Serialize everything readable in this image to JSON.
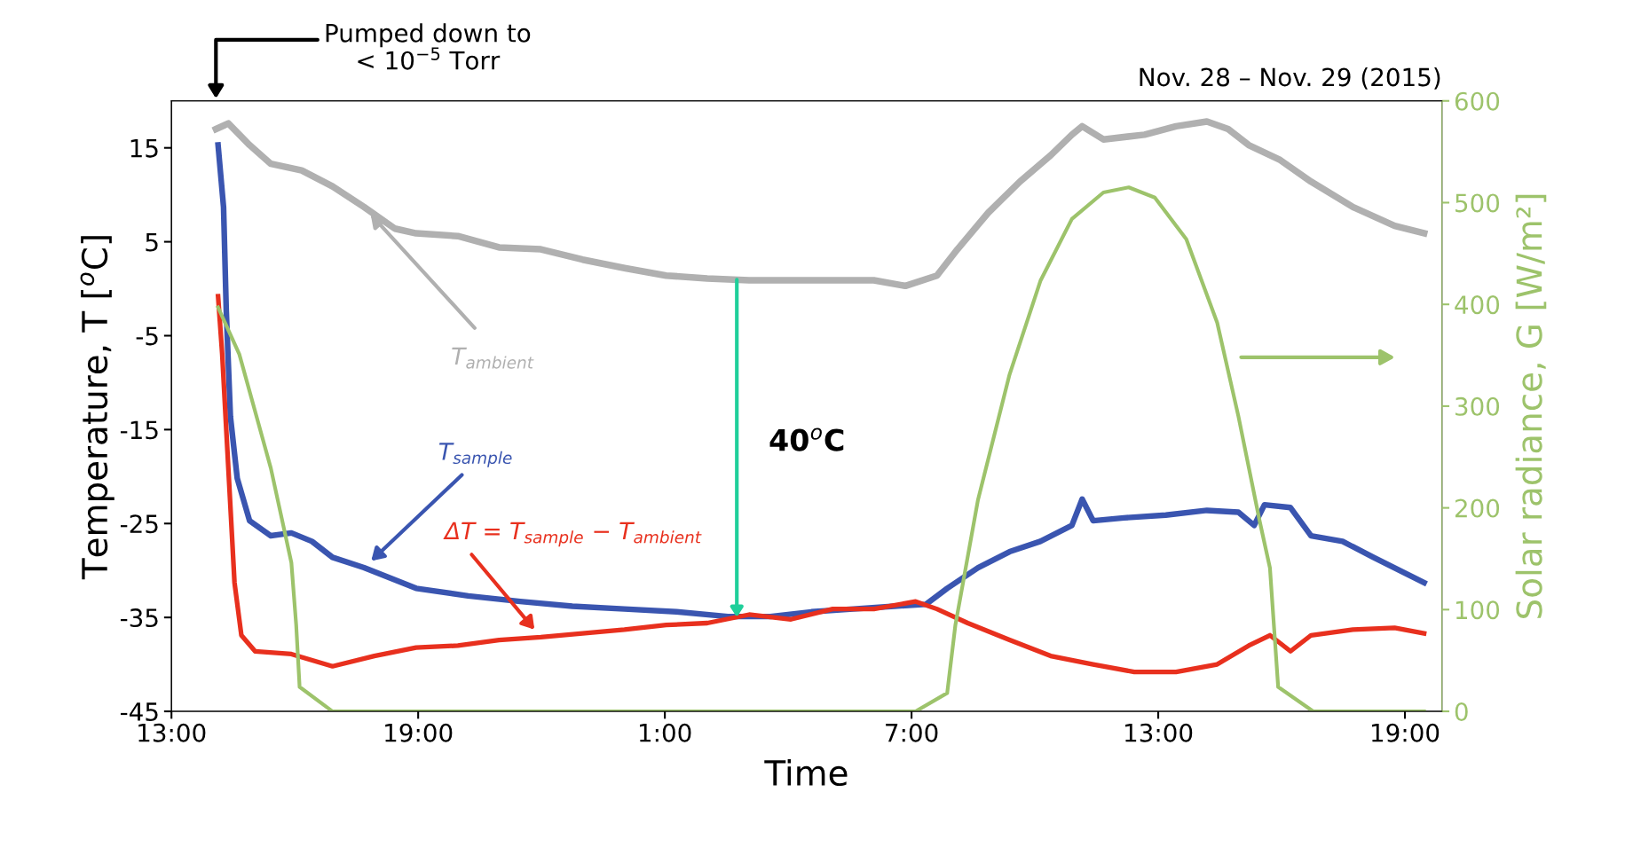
{
  "chart_data": {
    "type": "line",
    "title": "Nov. 28 – Nov. 29 (2015)",
    "xlabel": "Time",
    "ylabel": "Temperature, T [$^{o}$C]",
    "y2label": "Solar radiance, G [W/m²]",
    "xlim": [
      "2015-11-28T13:00",
      "2015-11-29T19:54"
    ],
    "xticks": [
      {
        "value": "2015-11-28T13:00",
        "label": "13:00"
      },
      {
        "value": "2015-11-28T19:00",
        "label": "19:00"
      },
      {
        "value": "2015-11-29T01:00",
        "label": "1:00"
      },
      {
        "value": "2015-11-29T07:00",
        "label": "7:00"
      },
      {
        "value": "2015-11-29T13:00",
        "label": "13:00"
      },
      {
        "value": "2015-11-29T19:00",
        "label": "19:00"
      }
    ],
    "ylim": [
      -45,
      20
    ],
    "yticks": [
      -45,
      -35,
      -25,
      -15,
      -5,
      5,
      15
    ],
    "y2lim": [
      0,
      600
    ],
    "y2ticks": [
      0,
      100,
      200,
      300,
      400,
      500,
      600
    ],
    "grid": false,
    "legend": false,
    "marker": "none",
    "line_style": "solid",
    "series": [
      {
        "name": "T$_{ambient}$",
        "color": "#b0b0b0",
        "x": [
          "2015-11-28T14:05",
          "2015-11-28T14:23",
          "2015-11-28T14:54",
          "2015-11-28T15:25",
          "2015-11-28T16:10",
          "2015-11-28T16:55",
          "2015-11-28T17:41",
          "2015-11-28T18:26",
          "2015-11-28T18:57",
          "2015-11-28T19:58",
          "2015-11-28T20:58",
          "2015-11-28T21:59",
          "2015-11-28T23:00",
          "2015-11-29T00:01",
          "2015-11-29T01:02",
          "2015-11-29T02:02",
          "2015-11-29T03:03",
          "2015-11-29T04:04",
          "2015-11-29T05:05",
          "2015-11-29T06:05",
          "2015-11-29T06:51",
          "2015-11-29T07:37",
          "2015-11-29T08:07",
          "2015-11-29T08:52",
          "2015-11-29T09:38",
          "2015-11-29T10:23",
          "2015-11-29T10:54",
          "2015-11-29T11:09",
          "2015-11-29T11:40",
          "2015-11-29T12:40",
          "2015-11-29T13:26",
          "2015-11-29T14:11",
          "2015-11-29T14:42",
          "2015-11-29T15:12",
          "2015-11-29T15:58",
          "2015-11-29T16:43",
          "2015-11-29T17:44",
          "2015-11-29T18:45",
          "2015-11-29T19:28"
        ],
        "values": [
          17,
          17.6,
          15.3,
          13.3,
          12.6,
          10.9,
          8.7,
          6.4,
          5.9,
          5.6,
          4.4,
          4.2,
          3.1,
          2.2,
          1.4,
          1.1,
          0.9,
          0.9,
          0.9,
          0.9,
          0.3,
          1.4,
          4.2,
          8.1,
          11.4,
          14.2,
          16.4,
          17.3,
          15.9,
          16.4,
          17.3,
          17.8,
          17,
          15.3,
          13.7,
          11.4,
          8.7,
          6.7,
          5.9
        ]
      },
      {
        "name": "T$_{sample}$",
        "color": "#3a55b0",
        "x": [
          "2015-11-28T14:08",
          "2015-11-28T14:16",
          "2015-11-28T14:20",
          "2015-11-28T14:26",
          "2015-11-28T14:36",
          "2015-11-28T14:54",
          "2015-11-28T15:25",
          "2015-11-28T15:55",
          "2015-11-28T16:25",
          "2015-11-28T16:55",
          "2015-11-28T17:41",
          "2015-11-28T18:57",
          "2015-11-28T20:13",
          "2015-11-28T21:29",
          "2015-11-28T22:45",
          "2015-11-29T00:01",
          "2015-11-29T01:17",
          "2015-11-29T02:32",
          "2015-11-29T03:34",
          "2015-11-29T04:34",
          "2015-11-29T05:35",
          "2015-11-29T06:35",
          "2015-11-29T07:21",
          "2015-11-29T07:52",
          "2015-11-29T08:37",
          "2015-11-29T09:23",
          "2015-11-29T10:08",
          "2015-11-29T10:54",
          "2015-11-29T11:09",
          "2015-11-29T11:25",
          "2015-11-29T12:10",
          "2015-11-29T13:11",
          "2015-11-29T14:11",
          "2015-11-29T14:57",
          "2015-11-29T15:20",
          "2015-11-29T15:35",
          "2015-11-29T16:13",
          "2015-11-29T16:43",
          "2015-11-29T17:29",
          "2015-11-29T18:14",
          "2015-11-29T19:28"
        ],
        "values": [
          15.3,
          8.7,
          -2.4,
          -13.6,
          -20.2,
          -24.7,
          -26.3,
          -26,
          -26.9,
          -28.6,
          -29.7,
          -31.9,
          -32.7,
          -33.3,
          -33.8,
          -34.1,
          -34.4,
          -34.9,
          -34.9,
          -34.4,
          -34.1,
          -33.8,
          -33.6,
          -31.9,
          -29.7,
          -28,
          -26.9,
          -25.2,
          -22.4,
          -24.7,
          -24.4,
          -24.1,
          -23.6,
          -23.8,
          -25.2,
          -23,
          -23.3,
          -26.3,
          -26.9,
          -28.6,
          -31.3
        ]
      },
      {
        "name": "ΔT = T$_{sample}$ − T$_{ambient}$",
        "color": "#e8301e",
        "x": [
          "2015-11-28T14:08",
          "2015-11-28T14:14",
          "2015-11-28T14:23",
          "2015-11-28T14:32",
          "2015-11-28T14:42",
          "2015-11-28T15:02",
          "2015-11-28T15:55",
          "2015-11-28T16:55",
          "2015-11-28T17:56",
          "2015-11-28T18:57",
          "2015-11-28T19:58",
          "2015-11-28T20:58",
          "2015-11-28T21:59",
          "2015-11-28T23:00",
          "2015-11-29T00:01",
          "2015-11-29T01:02",
          "2015-11-29T02:02",
          "2015-11-29T03:03",
          "2015-11-29T04:04",
          "2015-11-29T05:05",
          "2015-11-29T06:05",
          "2015-11-29T07:06",
          "2015-11-29T07:37",
          "2015-11-29T08:22",
          "2015-11-29T09:23",
          "2015-11-29T10:23",
          "2015-11-29T11:25",
          "2015-11-29T12:25",
          "2015-11-29T13:26",
          "2015-11-29T14:26",
          "2015-11-29T15:12",
          "2015-11-29T15:43",
          "2015-11-29T16:13",
          "2015-11-29T16:43",
          "2015-11-29T17:44",
          "2015-11-29T18:45",
          "2015-11-29T19:28"
        ],
        "values": [
          -0.8,
          -6.9,
          -19.1,
          -31.3,
          -36.9,
          -38.6,
          -38.9,
          -40.2,
          -39.1,
          -38.2,
          -38,
          -37.4,
          -37.1,
          -36.7,
          -36.3,
          -35.8,
          -35.6,
          -34.7,
          -35.2,
          -34.1,
          -34.1,
          -33.3,
          -34.1,
          -35.6,
          -37.4,
          -39.1,
          -40,
          -40.8,
          -40.8,
          -40,
          -38,
          -36.9,
          -38.6,
          -36.9,
          -36.3,
          -36.1,
          -36.7
        ]
      },
      {
        "color": "#9dc36b",
        "axis": "y2",
        "x": [
          "2015-11-28T14:08",
          "2015-11-28T14:39",
          "2015-11-28T15:25",
          "2015-11-28T15:55",
          "2015-11-28T16:02",
          "2015-11-28T16:07",
          "2015-11-28T16:55",
          "2015-11-29T07:06",
          "2015-11-29T07:52",
          "2015-11-29T08:04",
          "2015-11-29T08:37",
          "2015-11-29T09:23",
          "2015-11-29T10:08",
          "2015-11-29T10:54",
          "2015-11-29T11:40",
          "2015-11-29T12:17",
          "2015-11-29T12:55",
          "2015-11-29T13:41",
          "2015-11-29T14:26",
          "2015-11-29T14:57",
          "2015-11-29T15:28",
          "2015-11-29T15:43",
          "2015-11-29T15:55",
          "2015-11-29T16:46",
          "2015-11-29T19:28"
        ],
        "values": [
          397,
          351,
          239,
          146,
          85,
          24,
          0,
          0,
          18,
          85,
          208,
          331,
          423,
          484,
          510,
          515,
          505,
          464,
          382,
          290,
          187,
          141,
          24,
          0,
          0
        ]
      }
    ],
    "annotations": [
      "Pumped down to\n< 10$^{−5}$ Torr",
      "40$^{o}$C"
    ]
  }
}
